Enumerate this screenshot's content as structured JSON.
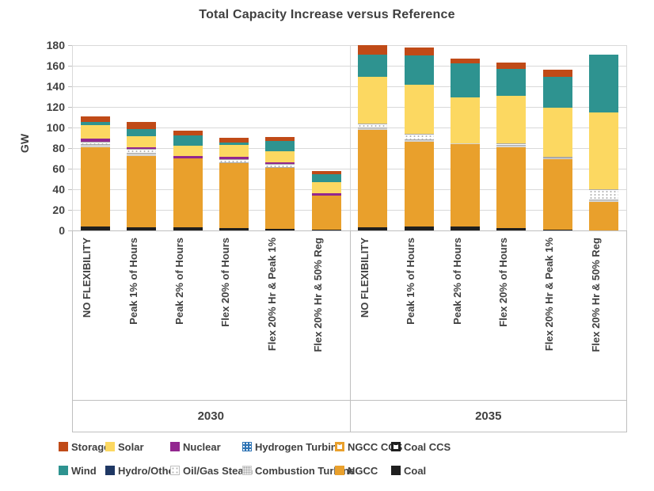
{
  "title": "Total Capacity Increase versus Reference",
  "chart_data": {
    "type": "bar",
    "stacked": true,
    "title": "Total Capacity Increase versus Reference",
    "ylabel": "GW",
    "ylim": [
      0,
      180
    ],
    "yticks": [
      0,
      20,
      40,
      60,
      80,
      100,
      120,
      140,
      160,
      180
    ],
    "grid": "horizontal",
    "legend_position": "bottom",
    "groups": [
      "2030",
      "2035"
    ],
    "categories": [
      "NO FLEXIBILITY",
      "Peak 1% of Hours",
      "Peak 2% of Hours",
      "Flex 20% of Hours",
      "Flex 20% Hr & Peak 1%",
      "Flex 20% Hr & 50% Reg"
    ],
    "bar_order_note": "12 bars: 6 categories for 2030 then same 6 for 2035; series listed bottom-to-top of stack; values in GW",
    "series": [
      {
        "name": "Coal",
        "key": "coal",
        "color": "#1f1f1f",
        "pattern": "solid",
        "values": [
          4,
          3,
          3,
          2,
          1.5,
          1,
          3,
          3.5,
          4,
          2.5,
          1,
          0
        ]
      },
      {
        "name": "NGCC",
        "key": "ngcc",
        "color": "#e9a02c",
        "pattern": "solid",
        "values": [
          77,
          69.5,
          67,
          63.5,
          59.5,
          32.5,
          95,
          82.5,
          80,
          78.5,
          68,
          28
        ]
      },
      {
        "name": "Combustion Turbine",
        "key": "ct",
        "color": "#d4d4d4",
        "pattern": "gray-fill",
        "values": [
          2,
          2.5,
          0,
          0,
          0,
          0,
          1.5,
          1.5,
          1,
          1,
          1,
          1
        ]
      },
      {
        "name": "Oil/Gas Steam",
        "key": "ogs",
        "color": "#ffffff",
        "pattern": "white-dots",
        "values": [
          3.5,
          4,
          0,
          4,
          3.5,
          0,
          4.5,
          6,
          0,
          3,
          1.5,
          11
        ]
      },
      {
        "name": "Nuclear",
        "key": "nuclear",
        "color": "#92278f",
        "pattern": "solid",
        "values": [
          2.5,
          2,
          2.5,
          2,
          2,
          2.5,
          0,
          0,
          0,
          0,
          0,
          0
        ]
      },
      {
        "name": "Solar",
        "key": "solar",
        "color": "#fcd861",
        "pattern": "solid",
        "values": [
          13,
          10.5,
          10,
          11.5,
          10.5,
          11,
          45,
          48,
          44.5,
          45.5,
          47.5,
          74.5
        ]
      },
      {
        "name": "Wind",
        "key": "wind",
        "color": "#2e9390",
        "pattern": "solid",
        "values": [
          3.5,
          7,
          10,
          2.5,
          10,
          8,
          22,
          28.5,
          32.5,
          26.5,
          30.5,
          56.5
        ]
      },
      {
        "name": "Storage",
        "key": "storage",
        "color": "#c04a17",
        "pattern": "solid",
        "values": [
          5.5,
          7,
          4.5,
          4.5,
          3.5,
          2.5,
          9,
          8,
          5,
          6,
          6.5,
          0
        ]
      }
    ],
    "bar_totals": [
      111,
      105.5,
      97,
      90,
      90.5,
      57.5,
      180,
      178,
      167,
      163,
      156,
      171
    ]
  },
  "legend": {
    "rows": [
      [
        {
          "label": "Storage",
          "swatch": "solid",
          "color": "#c04a17"
        },
        {
          "label": "Solar",
          "swatch": "solid",
          "color": "#fcd861"
        },
        {
          "label": "Nuclear",
          "swatch": "solid",
          "color": "#92278f"
        },
        {
          "label": "Hydrogen Turbine",
          "swatch": "dots-blue",
          "color": "#2e74b5"
        },
        {
          "label": "NGCC CCS",
          "swatch": "frame-orange",
          "color": "#e9a02c"
        },
        {
          "label": "Coal CCS",
          "swatch": "frame-black",
          "color": "#1f1f1f"
        }
      ],
      [
        {
          "label": "Wind",
          "swatch": "solid",
          "color": "#2e9390"
        },
        {
          "label": "Hydro/Other",
          "swatch": "solid",
          "color": "#1f3864"
        },
        {
          "label": "Oil/Gas Steam",
          "swatch": "dots-white",
          "color": "#ffffff"
        },
        {
          "label": "Combustion Turbine",
          "swatch": "dots-gray",
          "color": "#d4d4d4"
        },
        {
          "label": "NGCC",
          "swatch": "solid",
          "color": "#e9a02c"
        },
        {
          "label": "Coal",
          "swatch": "solid",
          "color": "#1f1f1f"
        }
      ]
    ]
  },
  "colors": {
    "grid": "#d9d9d9",
    "axis_box": "#bfbfbf",
    "text": "#404040"
  }
}
